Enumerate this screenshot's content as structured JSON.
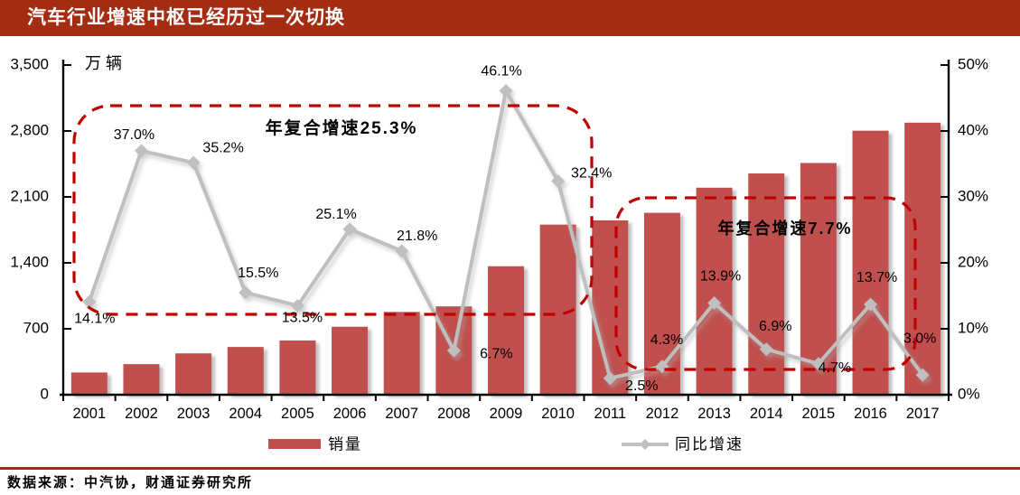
{
  "title": "汽车行业增速中枢已经历过一次切换",
  "source_note": "数据来源：中汽协，财通证券研究所",
  "chart_data": {
    "type": "bar+line",
    "categories": [
      "2001",
      "2002",
      "2003",
      "2004",
      "2005",
      "2006",
      "2007",
      "2008",
      "2009",
      "2010",
      "2011",
      "2012",
      "2013",
      "2014",
      "2015",
      "2016",
      "2017"
    ],
    "series": [
      {
        "name": "销量",
        "type": "bar",
        "axis": "left",
        "values": [
          236,
          325,
          439,
          507,
          576,
          722,
          879,
          938,
          1364,
          1806,
          1851,
          1931,
          2198,
          2349,
          2460,
          2803,
          2888
        ]
      },
      {
        "name": "同比增速",
        "type": "line",
        "axis": "right",
        "values": [
          14.1,
          37.0,
          35.2,
          15.5,
          13.5,
          25.1,
          21.8,
          6.7,
          46.1,
          32.4,
          2.5,
          4.3,
          13.9,
          6.9,
          4.7,
          13.7,
          3.0
        ],
        "labels": [
          "14.1%",
          "37.0%",
          "35.2%",
          "15.5%",
          "13.5%",
          "25.1%",
          "21.8%",
          "6.7%",
          "46.1%",
          "32.4%",
          "2.5%",
          "4.3%",
          "13.9%",
          "6.9%",
          "4.7%",
          "13.7%",
          "3.0%"
        ]
      }
    ],
    "left_axis": {
      "title": "万辆",
      "min": 0,
      "max": 3500,
      "tick_labels": [
        "0",
        "700",
        "1,400",
        "2,100",
        "2,800",
        "3,500"
      ]
    },
    "right_axis": {
      "min": 0,
      "max": 50,
      "tick_labels": [
        "0%",
        "10%",
        "20%",
        "30%",
        "40%",
        "50%"
      ]
    },
    "annotations": [
      {
        "text": "年复合增速25.3%"
      },
      {
        "text": "年复合增速7.7%"
      }
    ],
    "legend": [
      {
        "label": "销量",
        "swatch": "bar"
      },
      {
        "label": "同比增速",
        "swatch": "line-diamond"
      }
    ],
    "colors": {
      "banner": "#A42C11",
      "bar": "#C0504D",
      "line": "#BFBFBF",
      "dashed_box": "#C00000",
      "axis": "#000000",
      "footer_rule": "#A42C11"
    },
    "grid": "off",
    "legend_position": "bottom-center"
  }
}
